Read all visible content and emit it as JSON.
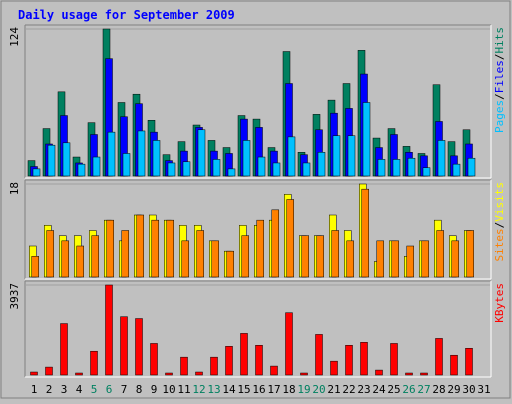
{
  "chart_data": {
    "type": "bar",
    "title": "Daily usage for September 2009",
    "legend_separator": "/",
    "categories": [
      "1",
      "2",
      "3",
      "4",
      "5",
      "6",
      "7",
      "8",
      "9",
      "10",
      "11",
      "12",
      "13",
      "14",
      "15",
      "16",
      "17",
      "18",
      "19",
      "20",
      "21",
      "22",
      "23",
      "24",
      "25",
      "26",
      "27",
      "28",
      "29",
      "30",
      "31"
    ],
    "category_colors": [
      "#000000",
      "#000000",
      "#000000",
      "#000000",
      "#008060",
      "#008060",
      "#000000",
      "#000000",
      "#000000",
      "#000000",
      "#000000",
      "#008060",
      "#008060",
      "#000000",
      "#000000",
      "#000000",
      "#000000",
      "#000000",
      "#008060",
      "#008060",
      "#000000",
      "#000000",
      "#000000",
      "#000000",
      "#000000",
      "#008060",
      "#008060",
      "#000000",
      "#000000",
      "#000000",
      "#000000"
    ],
    "panels": [
      {
        "ylim": [
          0,
          124
        ],
        "yticks": [
          124
        ],
        "series": [
          {
            "name": "Hits",
            "color": "#008060",
            "values": [
              13,
              40,
              71,
              16,
              45,
              124,
              62,
              69,
              47,
              18,
              29,
              43,
              30,
              24,
              51,
              48,
              24,
              105,
              20,
              52,
              64,
              78,
              106,
              32,
              40,
              25,
              19,
              77,
              29,
              39,
              null
            ]
          },
          {
            "name": "Files",
            "color": "#0000ff",
            "values": [
              8,
              27,
              51,
              11,
              35,
              99,
              50,
              61,
              37,
              13,
              21,
              41,
              21,
              19,
              48,
              41,
              21,
              78,
              18,
              39,
              53,
              57,
              86,
              24,
              35,
              20,
              17,
              46,
              17,
              27,
              null
            ]
          },
          {
            "name": "Pages",
            "color": "#00c0ff",
            "values": [
              6,
              26,
              28,
              10,
              16,
              37,
              19,
              38,
              30,
              11,
              12,
              39,
              14,
              6,
              30,
              16,
              11,
              33,
              11,
              20,
              34,
              34,
              62,
              14,
              14,
              15,
              7,
              30,
              10,
              15,
              null
            ]
          }
        ]
      },
      {
        "ylim": [
          0,
          18
        ],
        "yticks": [
          18
        ],
        "series": [
          {
            "name": "Visits",
            "color": "#ffff00",
            "values": [
              6,
              10,
              8,
              8,
              9,
              11,
              7,
              12,
              12,
              11,
              10,
              10,
              7,
              5,
              10,
              10,
              11,
              16,
              8,
              8,
              12,
              9,
              18,
              3,
              7,
              4,
              7,
              11,
              8,
              9,
              null
            ]
          },
          {
            "name": "Sites",
            "color": "#ff8000",
            "values": [
              4,
              9,
              7,
              6,
              8,
              11,
              9,
              12,
              11,
              11,
              7,
              9,
              7,
              5,
              8,
              11,
              13,
              15,
              8,
              8,
              9,
              7,
              17,
              7,
              7,
              6,
              7,
              9,
              7,
              9,
              null
            ]
          }
        ]
      },
      {
        "ylim": [
          0,
          3937
        ],
        "yticks": [
          3937
        ],
        "series": [
          {
            "name": "KBytes",
            "color": "#ff0000",
            "values": [
              130,
              346,
              2250,
              87,
              1040,
              3937,
              2550,
              2470,
              1380,
              87,
              780,
              130,
              780,
              1255,
              1820,
              1300,
              390,
              2725,
              87,
              1775,
              605,
              1300,
              1430,
              215,
              1380,
              87,
              87,
              1600,
              865,
              1170,
              null
            ]
          }
        ]
      }
    ]
  }
}
